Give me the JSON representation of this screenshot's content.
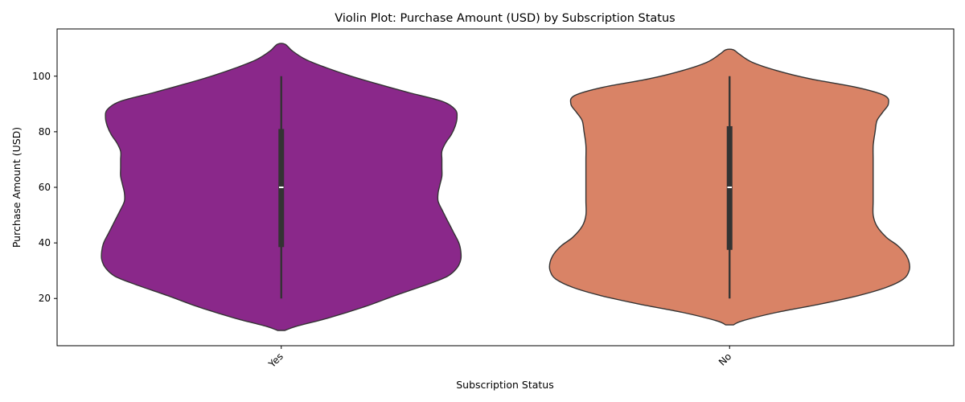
{
  "chart_data": {
    "type": "violin",
    "title": "Violin Plot: Purchase Amount (USD) by Subscription Status",
    "xlabel": "Subscription Status",
    "ylabel": "Purchase Amount (USD)",
    "ylim": [
      3,
      117
    ],
    "yticks": [
      20,
      40,
      60,
      80,
      100
    ],
    "categories": [
      "Yes",
      "No"
    ],
    "grid": false,
    "legend": "none",
    "series": [
      {
        "category": "Yes",
        "color": "#8a288a",
        "min": 20,
        "q1": 38.5,
        "median": 60,
        "q3": 81,
        "max": 100,
        "density": [
          [
            8.5,
            0.02
          ],
          [
            10,
            0.08
          ],
          [
            13,
            0.25
          ],
          [
            17,
            0.44
          ],
          [
            21,
            0.6
          ],
          [
            25,
            0.77
          ],
          [
            28,
            0.88
          ],
          [
            31,
            0.93
          ],
          [
            34,
            0.95
          ],
          [
            37,
            0.95
          ],
          [
            40,
            0.94
          ],
          [
            44,
            0.91
          ],
          [
            48,
            0.88
          ],
          [
            52,
            0.85
          ],
          [
            55,
            0.83
          ],
          [
            58,
            0.83
          ],
          [
            61,
            0.84
          ],
          [
            64,
            0.85
          ],
          [
            67,
            0.85
          ],
          [
            70,
            0.85
          ],
          [
            73,
            0.85
          ],
          [
            76,
            0.87
          ],
          [
            79,
            0.9
          ],
          [
            82,
            0.92
          ],
          [
            85,
            0.93
          ],
          [
            88,
            0.92
          ],
          [
            91,
            0.85
          ],
          [
            94,
            0.68
          ],
          [
            97,
            0.52
          ],
          [
            100,
            0.37
          ],
          [
            103,
            0.24
          ],
          [
            106,
            0.13
          ],
          [
            109,
            0.06
          ],
          [
            111.5,
            0.02
          ]
        ]
      },
      {
        "category": "No",
        "color": "#d98366",
        "min": 20,
        "q1": 37.5,
        "median": 60,
        "q3": 82,
        "max": 100,
        "density": [
          [
            10.5,
            0.02
          ],
          [
            12,
            0.07
          ],
          [
            15,
            0.25
          ],
          [
            18,
            0.48
          ],
          [
            21,
            0.68
          ],
          [
            24,
            0.83
          ],
          [
            27,
            0.92
          ],
          [
            30,
            0.95
          ],
          [
            33,
            0.95
          ],
          [
            36,
            0.93
          ],
          [
            39,
            0.89
          ],
          [
            42,
            0.83
          ],
          [
            46,
            0.78
          ],
          [
            50,
            0.76
          ],
          [
            55,
            0.76
          ],
          [
            60,
            0.76
          ],
          [
            65,
            0.76
          ],
          [
            70,
            0.76
          ],
          [
            75,
            0.76
          ],
          [
            80,
            0.77
          ],
          [
            84,
            0.78
          ],
          [
            87,
            0.81
          ],
          [
            90,
            0.84
          ],
          [
            93,
            0.82
          ],
          [
            96,
            0.67
          ],
          [
            99,
            0.43
          ],
          [
            102,
            0.25
          ],
          [
            105,
            0.12
          ],
          [
            108,
            0.05
          ],
          [
            109.5,
            0.02
          ]
        ]
      }
    ]
  }
}
